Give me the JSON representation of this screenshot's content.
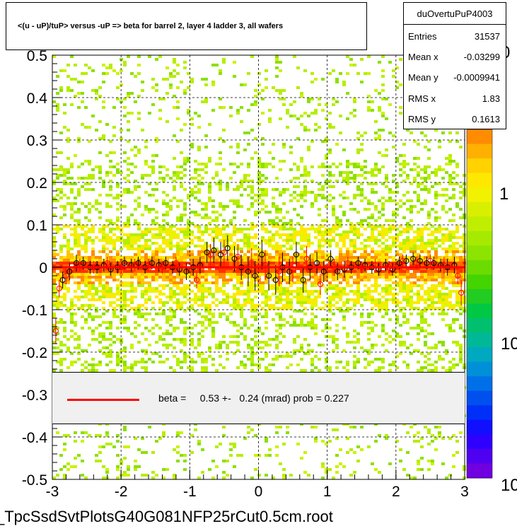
{
  "title": "<(u - uP)/tuP> versus  -uP => beta for barrel 2, layer 4 ladder 3, all wafers",
  "stats": {
    "name": "duOvertuPuP4003",
    "rows": [
      {
        "label": "Entries",
        "value": "31537"
      },
      {
        "label": "Mean x",
        "value": "-0.03299"
      },
      {
        "label": "Mean y",
        "value": "-0.0009941"
      },
      {
        "label": "RMS x",
        "value": "1.83"
      },
      {
        "label": "RMS y",
        "value": "0.1613"
      }
    ]
  },
  "legend": {
    "text": "beta =     0.53 +-   0.24 (mrad) prob = 0.227",
    "line_color": "#ff0000"
  },
  "footer": "_TpcSsdSvtPlotsG40G081NFP25rCut0.5cm.root",
  "colorbar": {
    "tick_labels": [
      "0",
      "1",
      "10",
      "10"
    ]
  },
  "chart_data": {
    "type": "scatter",
    "xlim": [
      -3,
      3
    ],
    "ylim": [
      -0.5,
      0.5
    ],
    "x_ticks": [
      -3,
      -2,
      -1,
      0,
      1,
      2,
      3
    ],
    "x_tick_labels": [
      "-3",
      "-2",
      "-1",
      "0",
      "1",
      "2",
      "3"
    ],
    "y_ticks": [
      -0.5,
      -0.4,
      -0.3,
      -0.2,
      -0.1,
      0,
      0.1,
      0.2,
      0.3,
      0.4,
      0.5
    ],
    "y_tick_labels": [
      "-0.5",
      "-0.4",
      "-0.3",
      "-0.2",
      "-0.1",
      "0",
      "0.1",
      "0.2",
      "0.3",
      "0.4",
      "0.5"
    ],
    "grid": true,
    "fit_line": {
      "y": 0.0
    },
    "series": [
      {
        "marker": "open-circle",
        "color": "#000000",
        "x": [
          -2.85,
          -2.75,
          -2.65,
          -2.55,
          -2.45,
          -2.35,
          -2.25,
          -2.15,
          -2.05,
          -1.95,
          -1.85,
          -1.75,
          -1.65,
          -1.55,
          -1.45,
          -1.35,
          -1.25,
          -1.15,
          -1.05,
          -0.95,
          -0.85,
          -0.75,
          -0.65,
          -0.55,
          -0.45,
          -0.35,
          -0.25,
          -0.15,
          -0.05,
          0.05,
          0.15,
          0.25,
          0.35,
          0.45,
          0.55,
          0.65,
          0.75,
          0.85,
          0.95,
          1.05,
          1.15,
          1.25,
          1.35,
          1.45,
          1.55,
          1.65,
          1.75,
          1.85,
          1.95,
          2.05,
          2.15,
          2.25,
          2.35,
          2.45,
          2.55,
          2.65,
          2.75,
          2.85
        ],
        "y": [
          -0.03,
          -0.01,
          0.01,
          0.01,
          0.0,
          0.0,
          0.005,
          -0.005,
          0.0,
          0.01,
          0.005,
          0.01,
          0.0,
          0.01,
          0.005,
          0.01,
          0.0,
          -0.005,
          -0.01,
          0.0,
          0.005,
          0.035,
          0.04,
          0.03,
          0.045,
          0.02,
          0.0,
          -0.01,
          -0.02,
          0.03,
          -0.02,
          -0.03,
          0.0,
          -0.01,
          0.03,
          -0.03,
          0.0,
          0.01,
          -0.01,
          0.02,
          -0.01,
          -0.005,
          0.0,
          0.01,
          0.005,
          0.0,
          -0.005,
          0.005,
          -0.005,
          0.01,
          0.015,
          0.02,
          0.015,
          0.01,
          0.01,
          0.005,
          0.0,
          0.005
        ],
        "err": [
          0.02,
          0.02,
          0.02,
          0.015,
          0.015,
          0.015,
          0.015,
          0.015,
          0.015,
          0.015,
          0.015,
          0.015,
          0.015,
          0.015,
          0.015,
          0.015,
          0.015,
          0.015,
          0.02,
          0.02,
          0.02,
          0.025,
          0.03,
          0.03,
          0.03,
          0.03,
          0.03,
          0.035,
          0.035,
          0.035,
          0.035,
          0.035,
          0.035,
          0.03,
          0.03,
          0.03,
          0.03,
          0.025,
          0.025,
          0.02,
          0.02,
          0.02,
          0.015,
          0.015,
          0.015,
          0.015,
          0.015,
          0.015,
          0.015,
          0.015,
          0.015,
          0.015,
          0.015,
          0.015,
          0.015,
          0.015,
          0.02,
          0.02
        ]
      },
      {
        "marker": "open-circle",
        "color": "#ff0000",
        "x": [
          -2.95,
          -2.9,
          -2.8,
          -2.6,
          -2.4,
          -2.2,
          -2.0,
          -1.8,
          -1.6,
          -1.4,
          -1.2,
          -0.9,
          -0.7,
          -0.5,
          -0.3,
          -0.1,
          0.1,
          0.3,
          0.5,
          0.7,
          0.9,
          1.1,
          1.3,
          1.5,
          1.7,
          1.9,
          2.1,
          2.3,
          2.5,
          2.7,
          2.9,
          2.95
        ],
        "y": [
          -0.15,
          -0.05,
          -0.02,
          0.005,
          0.0,
          0.01,
          0.0,
          0.005,
          0.005,
          0.0,
          0.01,
          -0.03,
          0.03,
          0.035,
          0.025,
          0.01,
          0.005,
          -0.01,
          -0.005,
          0.02,
          -0.04,
          0.0,
          0.01,
          0.0,
          0.005,
          0.0,
          0.015,
          0.01,
          0.015,
          0.005,
          -0.02,
          -0.06
        ],
        "err": [
          0.03,
          0.02,
          0.02,
          0.015,
          0.015,
          0.015,
          0.015,
          0.015,
          0.015,
          0.015,
          0.015,
          0.02,
          0.025,
          0.03,
          0.03,
          0.035,
          0.035,
          0.035,
          0.03,
          0.03,
          0.025,
          0.02,
          0.015,
          0.015,
          0.015,
          0.015,
          0.015,
          0.015,
          0.015,
          0.02,
          0.02,
          0.03
        ]
      }
    ]
  }
}
